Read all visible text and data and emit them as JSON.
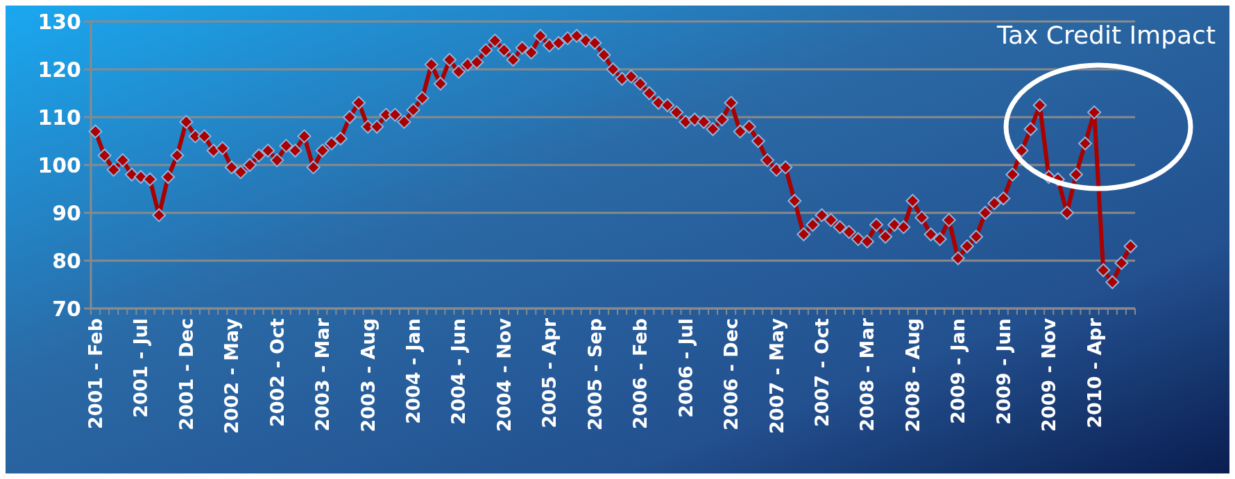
{
  "chart_data": {
    "type": "line",
    "annotations": [
      "Tax Credit Impact"
    ],
    "categories": [
      "2001 - Feb",
      null,
      null,
      null,
      null,
      "2001 - Jul",
      null,
      null,
      null,
      null,
      "2001 - Dec",
      null,
      null,
      null,
      null,
      "2002 - May",
      null,
      null,
      null,
      null,
      "2002 - Oct",
      null,
      null,
      null,
      null,
      "2003 - Mar",
      null,
      null,
      null,
      null,
      "2003 - Aug",
      null,
      null,
      null,
      null,
      "2004 - Jan",
      null,
      null,
      null,
      null,
      "2004 - Jun",
      null,
      null,
      null,
      null,
      "2004 - Nov",
      null,
      null,
      null,
      null,
      "2005 - Apr",
      null,
      null,
      null,
      null,
      "2005 - Sep",
      null,
      null,
      null,
      null,
      "2006 - Feb",
      null,
      null,
      null,
      null,
      "2006 - Jul",
      null,
      null,
      null,
      null,
      "2006 - Dec",
      null,
      null,
      null,
      null,
      "2007 - May",
      null,
      null,
      null,
      null,
      "2007 - Oct",
      null,
      null,
      null,
      null,
      "2008 - Mar",
      null,
      null,
      null,
      null,
      "2008 - Aug",
      null,
      null,
      null,
      null,
      "2009 - Jan",
      null,
      null,
      null,
      null,
      "2009 - Jun",
      null,
      null,
      null,
      null,
      "2009 - Nov",
      null,
      null,
      null,
      null,
      "2010 - Apr",
      null,
      null,
      null,
      null
    ],
    "series": [
      {
        "color": "#aa0000",
        "values": [
          107,
          102,
          99,
          101,
          98,
          97.5,
          97,
          89.5,
          97.5,
          102,
          109,
          106,
          106,
          103,
          103.5,
          99.5,
          98.5,
          100,
          102,
          103,
          101,
          104,
          103,
          106,
          99.5,
          103,
          104.5,
          105.5,
          110,
          113,
          108,
          108,
          110.5,
          110.5,
          109,
          111.5,
          114,
          121,
          117,
          122,
          119.5,
          121,
          121.5,
          124,
          126,
          124,
          122,
          124.5,
          123.5,
          127,
          125,
          125.5,
          126.5,
          127,
          126,
          125.5,
          123,
          120,
          118,
          118.5,
          117,
          115,
          113,
          112.5,
          111,
          109,
          109.5,
          109,
          107.5,
          109.5,
          113,
          107,
          108,
          105,
          101,
          99,
          99.5,
          92.5,
          85.5,
          87.5,
          89.5,
          88.5,
          87,
          86,
          84.5,
          84,
          87.5,
          85,
          87.5,
          87,
          92.5,
          89,
          85.5,
          84.5,
          88.5,
          80.5,
          83,
          85,
          90,
          92,
          93,
          98,
          103,
          107.5,
          112.5,
          97.5,
          97,
          90,
          98,
          104.5,
          111,
          78,
          75.5,
          79.5,
          83
        ]
      }
    ],
    "ylim": [
      70,
      130
    ],
    "yticks": [
      70,
      80,
      90,
      100,
      110,
      120,
      130
    ],
    "grid": "y",
    "marker": "diamond",
    "line_style": "solid"
  }
}
